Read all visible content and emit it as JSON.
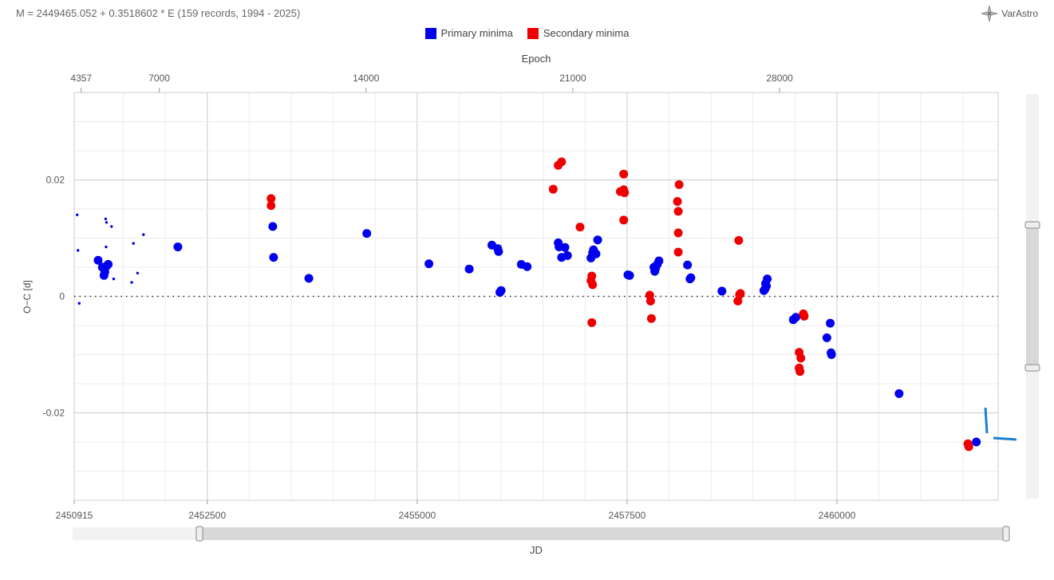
{
  "header": {
    "formula": "M = 2449465.052 + 0.3518602 * E (159 records, 1994 - 2025)",
    "logo_text": "VarAstro"
  },
  "legend": [
    {
      "label": "Primary minima",
      "color": "#0000ee"
    },
    {
      "label": "Secondary minima",
      "color": "#ee0000"
    }
  ],
  "chart_data": {
    "type": "scatter",
    "xlabel": "JD",
    "ylabel": "O−C [d]",
    "x2label": "Epoch",
    "xlim": [
      2450915,
      2461920
    ],
    "ylim": [
      -0.035,
      0.035
    ],
    "x_ticks": [
      2450915,
      2452500,
      2455000,
      2457500,
      2460000
    ],
    "x_tick_labels": [
      "2450915",
      "2452500",
      "2455000",
      "2457500",
      "2460000"
    ],
    "y_ticks": [
      -0.02,
      0,
      0.02
    ],
    "y_tick_labels": [
      "-0.02",
      "0",
      "0.02"
    ],
    "epoch_ticks": [
      4357,
      7000,
      14000,
      21000,
      28000
    ],
    "epoch_tick_labels": [
      "4357",
      "7000",
      "14000",
      "21000",
      "28000"
    ],
    "zero_line": true,
    "grid": true,
    "legend_position": "top-center",
    "series": [
      {
        "name": "Primary minima",
        "color": "#0000ee",
        "small_points": [
          [
            2450950,
            0.014
          ],
          [
            2450960,
            0.0079
          ],
          [
            2450975,
            -0.0012
          ],
          [
            2451290,
            0.0133
          ],
          [
            2451300,
            0.0127
          ],
          [
            2451295,
            0.0085
          ],
          [
            2451360,
            0.012
          ],
          [
            2451385,
            0.003
          ],
          [
            2451620,
            0.0091
          ],
          [
            2451740,
            0.0106
          ],
          [
            2451670,
            0.004
          ],
          [
            2451600,
            0.0024
          ]
        ],
        "points": [
          [
            2451200,
            0.0062
          ],
          [
            2451250,
            0.005
          ],
          [
            2451280,
            0.0042
          ],
          [
            2451270,
            0.0036
          ],
          [
            2451320,
            0.0055
          ],
          [
            2451300,
            0.0052
          ],
          [
            2452150,
            0.0085
          ],
          [
            2453280,
            0.012
          ],
          [
            2453290,
            0.0067
          ],
          [
            2453710,
            0.0031
          ],
          [
            2454400,
            0.0108
          ],
          [
            2455140,
            0.0056
          ],
          [
            2455620,
            0.0047
          ],
          [
            2455890,
            0.0088
          ],
          [
            2455960,
            0.0082
          ],
          [
            2455970,
            0.0077
          ],
          [
            2455985,
            0.0007
          ],
          [
            2456000,
            0.001
          ],
          [
            2456240,
            0.0055
          ],
          [
            2456310,
            0.0051
          ],
          [
            2456680,
            0.0092
          ],
          [
            2456690,
            0.0085
          ],
          [
            2456720,
            0.0067
          ],
          [
            2456760,
            0.0084
          ],
          [
            2456790,
            0.007
          ],
          [
            2457070,
            0.0066
          ],
          [
            2457090,
            0.0075
          ],
          [
            2457100,
            0.008
          ],
          [
            2457130,
            0.0073
          ],
          [
            2457150,
            0.0097
          ],
          [
            2457510,
            0.0037
          ],
          [
            2457530,
            0.0036
          ],
          [
            2457820,
            0.005
          ],
          [
            2457830,
            0.0043
          ],
          [
            2457840,
            0.0048
          ],
          [
            2457860,
            0.0055
          ],
          [
            2457880,
            0.0061
          ],
          [
            2458220,
            0.0054
          ],
          [
            2458250,
            0.003
          ],
          [
            2458260,
            0.0032
          ],
          [
            2458630,
            0.0009
          ],
          [
            2459130,
            0.001
          ],
          [
            2459145,
            0.0013
          ],
          [
            2459160,
            0.0018
          ],
          [
            2459170,
            0.003
          ],
          [
            2459150,
            0.0022
          ],
          [
            2459480,
            -0.004
          ],
          [
            2459510,
            -0.0036
          ],
          [
            2459880,
            -0.0071
          ],
          [
            2459920,
            -0.0046
          ],
          [
            2459930,
            -0.0097
          ],
          [
            2459935,
            -0.01
          ],
          [
            2460740,
            -0.0167
          ],
          [
            2461660,
            -0.025
          ]
        ]
      },
      {
        "name": "Secondary minima",
        "color": "#ee0000",
        "points": [
          [
            2453260,
            0.0168
          ],
          [
            2453260,
            0.0156
          ],
          [
            2456680,
            0.0225
          ],
          [
            2456620,
            0.0184
          ],
          [
            2456720,
            0.0231
          ],
          [
            2456940,
            0.0119
          ],
          [
            2457070,
            0.0027
          ],
          [
            2457080,
            0.0035
          ],
          [
            2457090,
            0.002
          ],
          [
            2457080,
            -0.0045
          ],
          [
            2457420,
            0.018
          ],
          [
            2457460,
            0.021
          ],
          [
            2457460,
            0.0183
          ],
          [
            2457470,
            0.0178
          ],
          [
            2457460,
            0.0131
          ],
          [
            2457770,
            0.0002
          ],
          [
            2457780,
            -0.0008
          ],
          [
            2457790,
            -0.0038
          ],
          [
            2458100,
            0.0163
          ],
          [
            2458110,
            0.0146
          ],
          [
            2458120,
            0.0192
          ],
          [
            2458110,
            0.0109
          ],
          [
            2458110,
            0.0076
          ],
          [
            2458830,
            0.0096
          ],
          [
            2458820,
            -0.0008
          ],
          [
            2458840,
            0.0003
          ],
          [
            2458850,
            0.0005
          ],
          [
            2459550,
            -0.0096
          ],
          [
            2459570,
            -0.0106
          ],
          [
            2459550,
            -0.0123
          ],
          [
            2459560,
            -0.0129
          ],
          [
            2459600,
            -0.003
          ],
          [
            2459610,
            -0.0034
          ],
          [
            2461560,
            -0.0253
          ],
          [
            2461570,
            -0.0258
          ]
        ]
      }
    ]
  }
}
